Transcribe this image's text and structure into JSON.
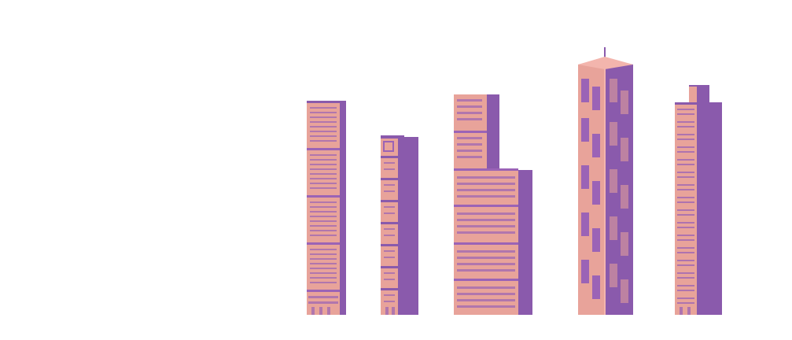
{
  "scene": {
    "background_color": "#ffffff",
    "sprite_style": "pixel-art",
    "object": "skyscraper"
  },
  "palette": {
    "facade_pink": "#e8a39a",
    "trim_purple": "#8a5aac",
    "shadow_purple": "#8a5aac",
    "window_purple": "#9b63b6",
    "light_pink": "#f3b5ad"
  },
  "buildings": [
    {
      "name": "building-1",
      "style": "horizontal-band-tower",
      "icon": "skyscraper-icon"
    },
    {
      "name": "building-2",
      "style": "stepped-pillar-tower",
      "icon": "skyscraper-icon"
    },
    {
      "name": "building-3",
      "style": "block-stack-tower",
      "icon": "skyscraper-icon"
    },
    {
      "name": "building-4",
      "style": "corner-spire-tower",
      "icon": "skyscraper-icon"
    },
    {
      "name": "building-5",
      "style": "patterned-slab-tower",
      "icon": "skyscraper-icon"
    }
  ]
}
